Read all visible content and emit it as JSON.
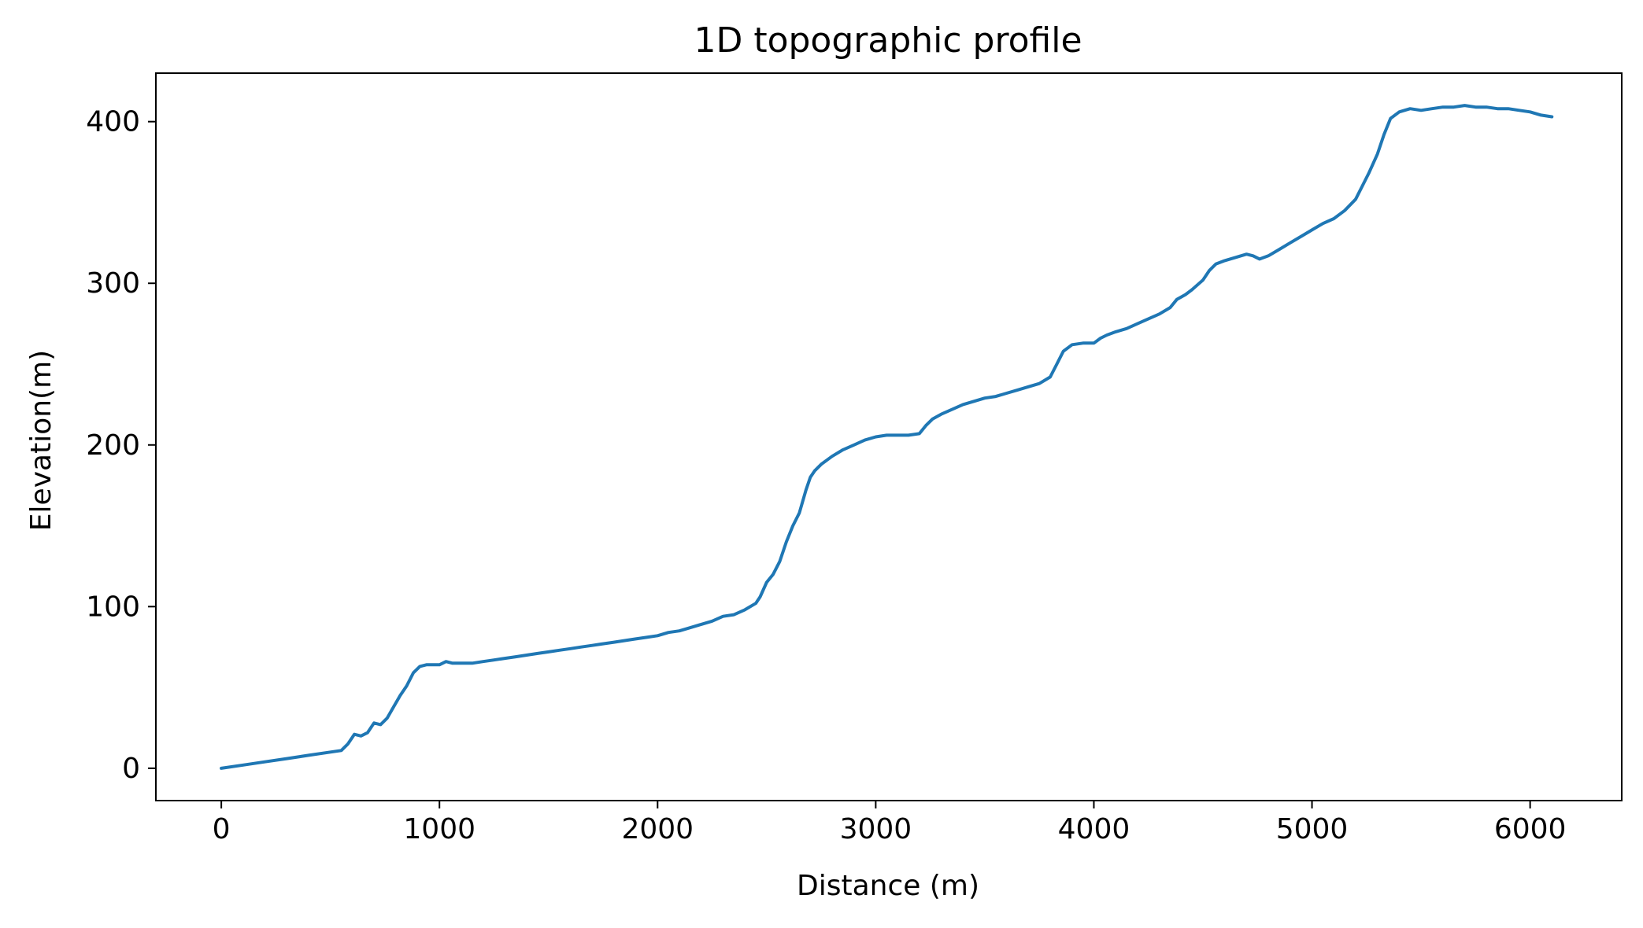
{
  "chart_data": {
    "type": "line",
    "title": "1D topographic profile",
    "xlabel": "Distance (m)",
    "ylabel": "Elevation(m)",
    "xlim": [
      -300,
      6420
    ],
    "ylim": [
      -20,
      430
    ],
    "xticks": [
      0,
      1000,
      2000,
      3000,
      4000,
      5000,
      6000
    ],
    "yticks": [
      0,
      100,
      200,
      300,
      400
    ],
    "xtick_labels": [
      "0",
      "1000",
      "2000",
      "3000",
      "4000",
      "5000",
      "6000"
    ],
    "ytick_labels": [
      "0",
      "100",
      "200",
      "300",
      "400"
    ],
    "grid": false,
    "legend": "none",
    "line_color": "#1f77b4",
    "series": [
      {
        "x": [
          0,
          100,
          200,
          300,
          400,
          500,
          550,
          580,
          610,
          640,
          670,
          700,
          730,
          760,
          790,
          820,
          850,
          880,
          910,
          940,
          970,
          1000,
          1030,
          1060,
          1100,
          1150,
          1200,
          1250,
          1300,
          1350,
          1400,
          1450,
          1500,
          1550,
          1600,
          1650,
          1700,
          1750,
          1800,
          1850,
          1900,
          1950,
          2000,
          2050,
          2100,
          2150,
          2200,
          2250,
          2300,
          2350,
          2400,
          2450,
          2470,
          2500,
          2530,
          2560,
          2590,
          2620,
          2650,
          2680,
          2700,
          2720,
          2750,
          2800,
          2850,
          2900,
          2950,
          3000,
          3050,
          3100,
          3150,
          3200,
          3230,
          3260,
          3300,
          3350,
          3400,
          3450,
          3500,
          3550,
          3600,
          3650,
          3700,
          3750,
          3800,
          3830,
          3860,
          3900,
          3950,
          4000,
          4030,
          4060,
          4100,
          4150,
          4200,
          4250,
          4300,
          4350,
          4380,
          4420,
          4450,
          4500,
          4530,
          4560,
          4600,
          4650,
          4700,
          4730,
          4760,
          4800,
          4850,
          4900,
          4950,
          5000,
          5050,
          5100,
          5150,
          5200,
          5230,
          5260,
          5300,
          5330,
          5360,
          5400,
          5450,
          5500,
          5550,
          5600,
          5650,
          5700,
          5750,
          5800,
          5850,
          5900,
          5950,
          6000,
          6050,
          6100
        ],
        "y": [
          0,
          2,
          4,
          6,
          8,
          10,
          11,
          15,
          21,
          20,
          22,
          28,
          27,
          31,
          38,
          45,
          51,
          59,
          63,
          64,
          64,
          64,
          66,
          65,
          65,
          65,
          66,
          67,
          68,
          69,
          70,
          71,
          72,
          73,
          74,
          75,
          76,
          77,
          78,
          79,
          80,
          81,
          82,
          84,
          85,
          87,
          89,
          91,
          94,
          95,
          98,
          102,
          106,
          115,
          120,
          128,
          140,
          150,
          158,
          172,
          180,
          184,
          188,
          193,
          197,
          200,
          203,
          205,
          206,
          206,
          206,
          207,
          212,
          216,
          219,
          222,
          225,
          227,
          229,
          230,
          232,
          234,
          236,
          238,
          242,
          250,
          258,
          262,
          263,
          263,
          266,
          268,
          270,
          272,
          275,
          278,
          281,
          285,
          290,
          293,
          296,
          302,
          308,
          312,
          314,
          316,
          318,
          317,
          315,
          317,
          321,
          325,
          329,
          333,
          337,
          340,
          345,
          352,
          360,
          368,
          380,
          392,
          402,
          406,
          408,
          407,
          408,
          409,
          409,
          410,
          409,
          409,
          408,
          408,
          407,
          406,
          404,
          403
        ]
      }
    ]
  }
}
